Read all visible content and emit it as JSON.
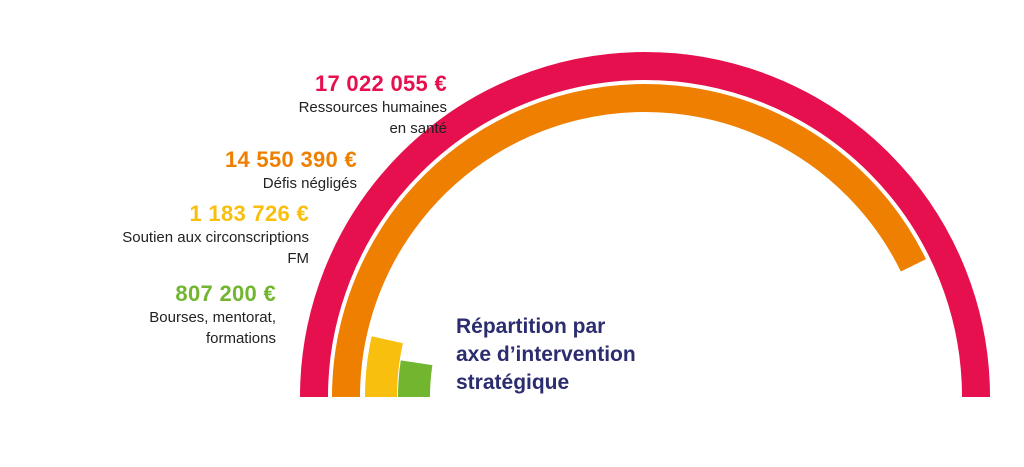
{
  "chart_data": {
    "type": "radial-bar",
    "title": "Répartition par\naxe d’intervention\nstratégique",
    "currency": "€",
    "series": [
      {
        "category": "Ressources humaines\nen santé",
        "value": 17022055,
        "value_label": "17 022 055 €",
        "color": "#e5104d"
      },
      {
        "category": "Défis négligés",
        "value": 14550390,
        "value_label": "14 550 390 €",
        "color": "#ee7f00"
      },
      {
        "category": "Soutien aux circonscriptions\nFM",
        "value": 1183726,
        "value_label": "1 183 726 €",
        "color": "#f9bf0f"
      },
      {
        "category": "Bourses, mentorat,\nformations",
        "value": 807200,
        "value_label": "807 200 €",
        "color": "#72b62f"
      }
    ]
  }
}
